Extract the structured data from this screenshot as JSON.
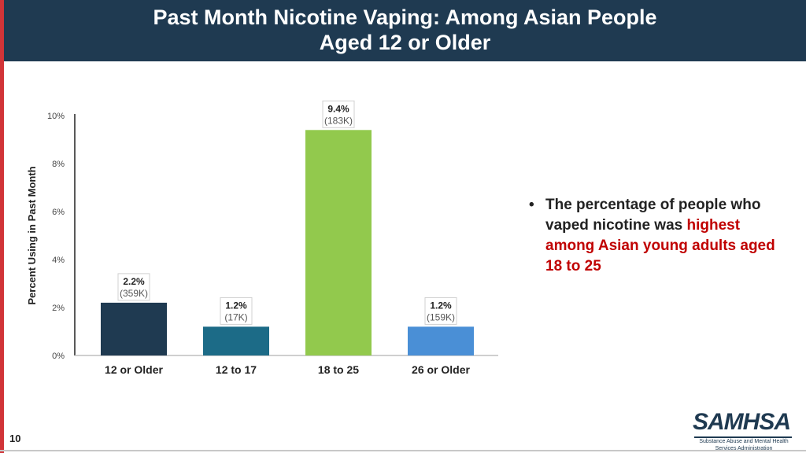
{
  "header": {
    "title_line1": "Past Month Nicotine Vaping: Among Asian People",
    "title_line2": "Aged 12 or Older"
  },
  "chart_data": {
    "type": "bar",
    "ylabel": "Percent Using in Past Month",
    "ylim": [
      0,
      10
    ],
    "yticks": [
      "0%",
      "2%",
      "4%",
      "6%",
      "8%",
      "10%"
    ],
    "categories": [
      "12 or Older",
      "12 to 17",
      "18 to 25",
      "26 or Older"
    ],
    "values": [
      2.2,
      1.2,
      9.4,
      1.2
    ],
    "value_labels": [
      "2.2%",
      "1.2%",
      "9.4%",
      "1.2%"
    ],
    "count_labels": [
      "(359K)",
      "(17K)",
      "(183K)",
      "(159K)"
    ],
    "colors": [
      "#1f3a51",
      "#1c6b87",
      "#92c94d",
      "#4a8fd6"
    ],
    "grid": false
  },
  "bullet": {
    "part1": "The percentage of people who vaped nicotine was ",
    "highlight": "highest among Asian young adults aged 18 to 25"
  },
  "footer": {
    "page_number": "10",
    "logo_text": "SAMHSA",
    "logo_sub_line1": "Substance Abuse and Mental Health",
    "logo_sub_line2": "Services Administration"
  }
}
